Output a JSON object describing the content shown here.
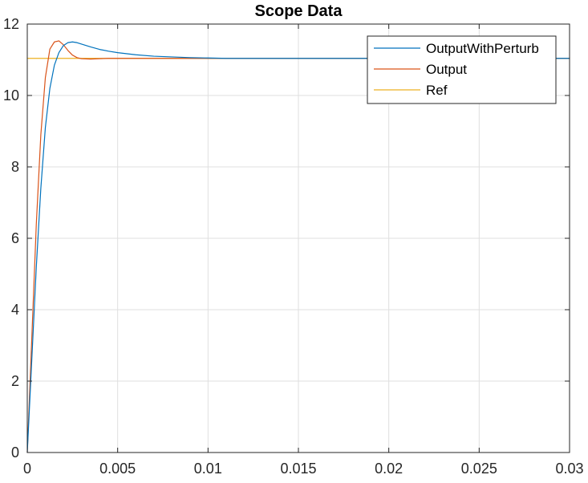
{
  "chart_data": {
    "type": "line",
    "title": "Scope Data",
    "xlabel": "",
    "ylabel": "",
    "xlim": [
      0,
      0.03
    ],
    "ylim": [
      0,
      12
    ],
    "x_ticks": [
      0,
      0.005,
      0.01,
      0.015,
      0.02,
      0.025,
      0.03
    ],
    "x_tick_labels": [
      "0",
      "0.005",
      "0.01",
      "0.015",
      "0.02",
      "0.025",
      "0.03"
    ],
    "y_ticks": [
      0,
      2,
      4,
      6,
      8,
      10,
      12
    ],
    "y_tick_labels": [
      "0",
      "2",
      "4",
      "6",
      "8",
      "10",
      "12"
    ],
    "grid": true,
    "legend_position": "top-right",
    "series": [
      {
        "name": "OutputWithPerturb",
        "color": "#0072BD",
        "x": [
          0,
          0.00025,
          0.0005,
          0.00075,
          0.001,
          0.00125,
          0.0015,
          0.00175,
          0.002,
          0.00225,
          0.0025,
          0.00275,
          0.003,
          0.0035,
          0.004,
          0.0045,
          0.005,
          0.006,
          0.007,
          0.008,
          0.009,
          0.01,
          0.011,
          0.012,
          0.013,
          0.014,
          0.015,
          0.02,
          0.025,
          0.03
        ],
        "y": [
          0,
          2.6,
          5.2,
          7.4,
          9.1,
          10.2,
          10.85,
          11.2,
          11.4,
          11.48,
          11.5,
          11.48,
          11.44,
          11.36,
          11.29,
          11.24,
          11.2,
          11.14,
          11.1,
          11.08,
          11.06,
          11.05,
          11.04,
          11.04,
          11.04,
          11.04,
          11.04,
          11.04,
          11.04,
          11.04
        ]
      },
      {
        "name": "Output",
        "color": "#D95319",
        "x": [
          0,
          0.00025,
          0.0005,
          0.00075,
          0.001,
          0.00125,
          0.0015,
          0.00175,
          0.002,
          0.00225,
          0.0025,
          0.00275,
          0.003,
          0.0035,
          0.004,
          0.0045,
          0.005,
          0.006,
          0.008,
          0.01,
          0.015,
          0.02,
          0.025,
          0.03
        ],
        "y": [
          0,
          3.2,
          6.4,
          8.9,
          10.5,
          11.3,
          11.5,
          11.53,
          11.42,
          11.26,
          11.13,
          11.06,
          11.03,
          11.02,
          11.03,
          11.04,
          11.04,
          11.04,
          11.04,
          11.04,
          11.04,
          11.04,
          11.04,
          11.04
        ]
      },
      {
        "name": "Ref",
        "color": "#EDB120",
        "x": [
          0,
          0.03
        ],
        "y": [
          11.04,
          11.04
        ]
      }
    ]
  }
}
